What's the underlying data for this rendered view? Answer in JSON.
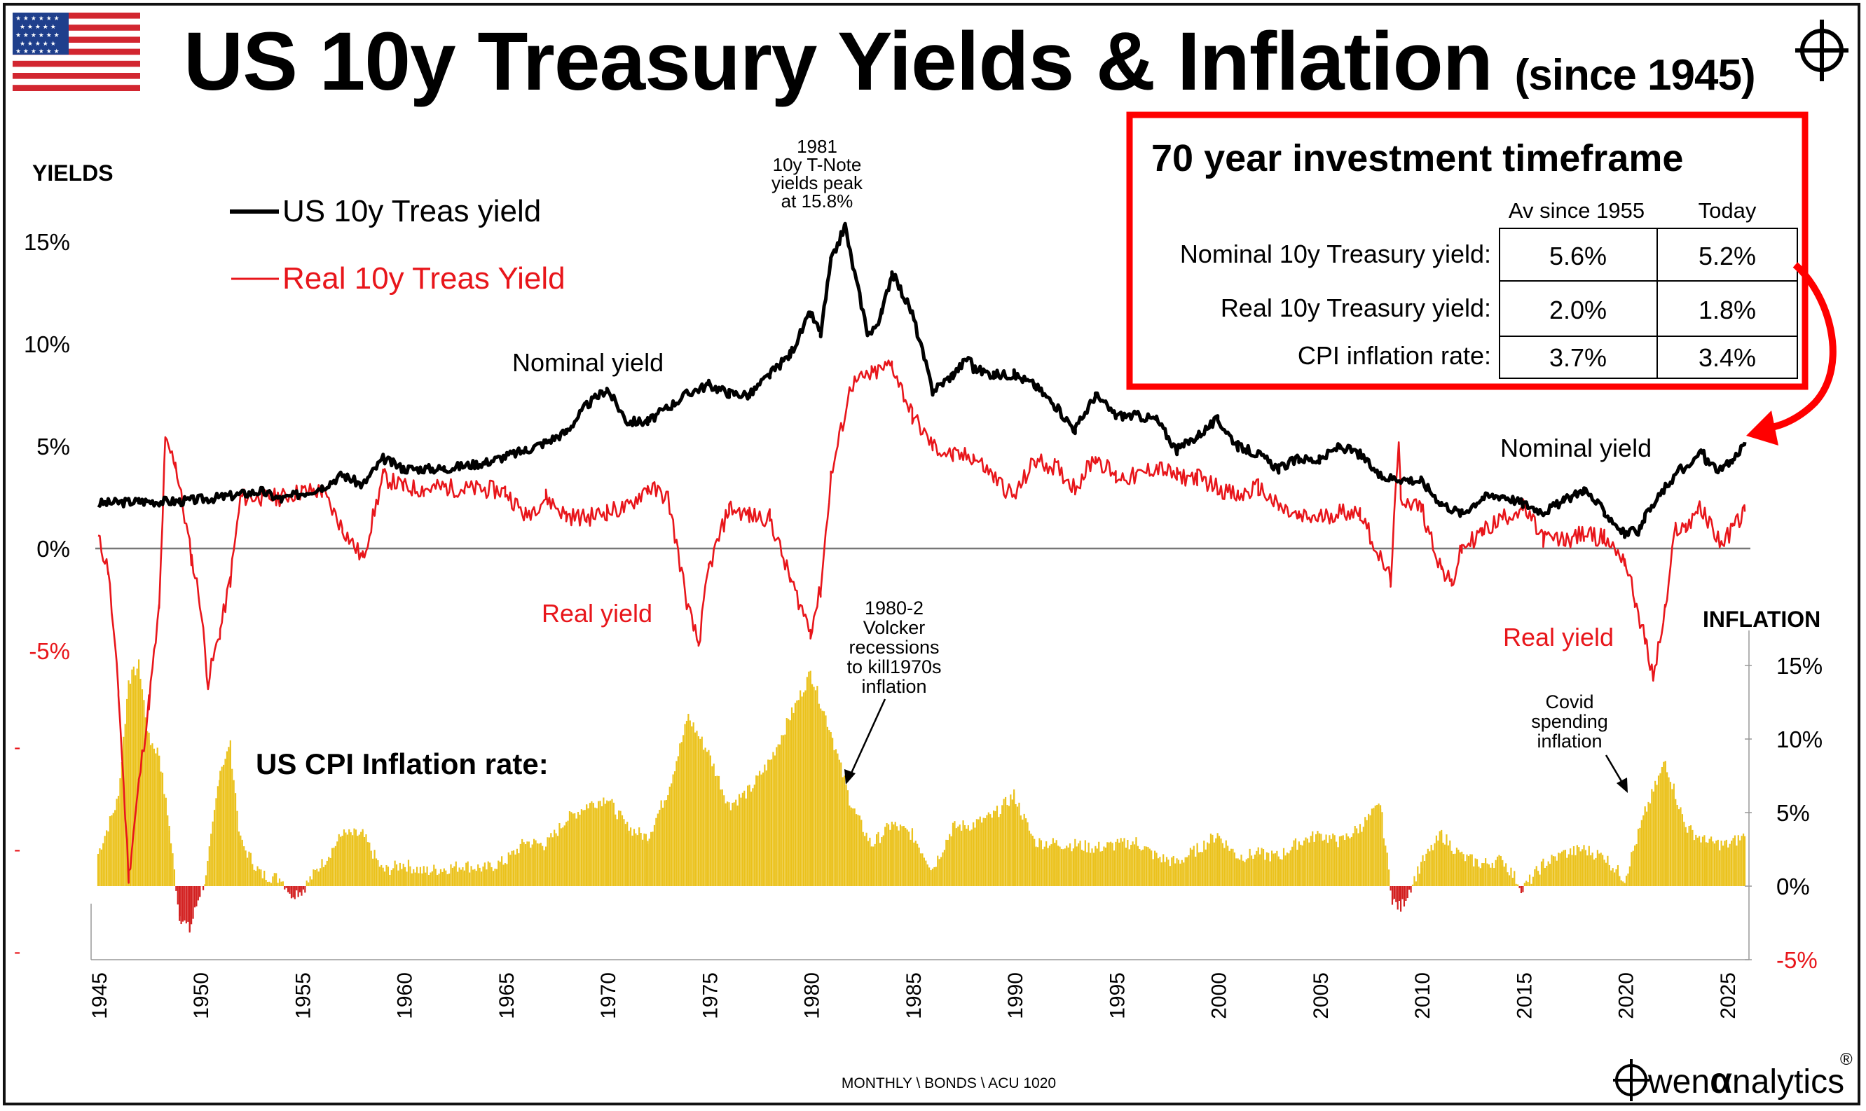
{
  "title": "US 10y Treasury Yields & Inflation",
  "title_suffix": "(since 1945)",
  "colors": {
    "nominal": "#000000",
    "real": "#e8161b",
    "cpi_pos": "#ebc21c",
    "cpi_neg": "#d32020",
    "box": "#ff0000"
  },
  "icons": {
    "flag": "us-flag-icon",
    "crosshair": "crosshair-logo-icon"
  },
  "left_axis_title": "YIELDS",
  "right_axis_title": "INFLATION",
  "legend": {
    "nominal": "US 10y Treas yield",
    "real": "Real 10y Treas Yield"
  },
  "labels": {
    "nominal_mid": "Nominal yield",
    "nominal_right": "Nominal yield",
    "real_mid": "Real yield",
    "real_right": "Real yield",
    "cpi_title": "US CPI Inflation rate:",
    "peak_note": [
      "1981",
      "10y T-Note",
      "yields peak",
      "at 15.8%"
    ],
    "volcker_note": [
      "1980-2",
      "Volcker",
      "recessions",
      "to kill1970s",
      "inflation"
    ],
    "covid_note": [
      "Covid",
      "spending",
      "inflation"
    ]
  },
  "info_box": {
    "title": "70 year investment timeframe",
    "col1": "Av since 1955",
    "col2": "Today",
    "rows": [
      {
        "label": "Nominal 10y Treasury yield:",
        "avg": "5.6%",
        "today": "5.2%"
      },
      {
        "label": "Real 10y Treasury yield:",
        "avg": "2.0%",
        "today": "1.8%"
      },
      {
        "label": "CPI inflation rate:",
        "avg": "3.7%",
        "today": "3.4%"
      }
    ]
  },
  "footer": {
    "source": "MONTHLY \\ BONDS \\ ACU 1020",
    "brand": "wen",
    "brand_alpha": "α",
    "brand_tail": "nalytics",
    "reg": "®"
  },
  "chart_data": {
    "type": "line",
    "x_range": [
      1945,
      2025.9
    ],
    "x_ticks": [
      "1945",
      "1950",
      "1955",
      "1960",
      "1965",
      "1970",
      "1975",
      "1980",
      "1985",
      "1990",
      "1995",
      "2000",
      "2005",
      "2010",
      "2015",
      "2020",
      "2025"
    ],
    "left_axis": {
      "range": [
        -5,
        15
      ],
      "ticks": [
        "15%",
        "10%",
        "5%",
        "0%",
        "-5%"
      ],
      "extra_ticks": [
        "-",
        "-",
        "-"
      ]
    },
    "right_axis": {
      "range": [
        -5,
        15
      ],
      "ticks": [
        "15%",
        "10%",
        "5%",
        "0%",
        "-5%"
      ]
    },
    "series": [
      {
        "name": "US 10y Treas yield",
        "axis": "left",
        "points": [
          [
            1945,
            2.2
          ],
          [
            1947,
            2.3
          ],
          [
            1949,
            2.3
          ],
          [
            1951,
            2.5
          ],
          [
            1953,
            2.8
          ],
          [
            1954,
            2.4
          ],
          [
            1956,
            3.0
          ],
          [
            1957,
            3.6
          ],
          [
            1958,
            3.1
          ],
          [
            1959,
            4.4
          ],
          [
            1960,
            3.9
          ],
          [
            1962,
            3.9
          ],
          [
            1964,
            4.2
          ],
          [
            1966,
            4.8
          ],
          [
            1967,
            5.2
          ],
          [
            1968,
            5.7
          ],
          [
            1969,
            7.0
          ],
          [
            1970,
            7.8
          ],
          [
            1971,
            6.2
          ],
          [
            1972,
            6.2
          ],
          [
            1973,
            6.9
          ],
          [
            1974,
            7.6
          ],
          [
            1975,
            8.0
          ],
          [
            1976,
            7.6
          ],
          [
            1977,
            7.5
          ],
          [
            1978,
            8.5
          ],
          [
            1979,
            9.5
          ],
          [
            1980,
            11.5
          ],
          [
            1980.5,
            10.5
          ],
          [
            1981,
            14.0
          ],
          [
            1981.7,
            15.8
          ],
          [
            1982,
            14.2
          ],
          [
            1982.8,
            10.6
          ],
          [
            1983,
            10.5
          ],
          [
            1983.5,
            11.5
          ],
          [
            1984,
            13.5
          ],
          [
            1985,
            11.5
          ],
          [
            1986,
            7.7
          ],
          [
            1987,
            8.5
          ],
          [
            1987.8,
            9.4
          ],
          [
            1988,
            8.8
          ],
          [
            1989,
            8.5
          ],
          [
            1990,
            8.5
          ],
          [
            1991,
            8.0
          ],
          [
            1992,
            7.0
          ],
          [
            1993,
            5.8
          ],
          [
            1994,
            7.5
          ],
          [
            1995,
            6.5
          ],
          [
            1996,
            6.5
          ],
          [
            1997,
            6.3
          ],
          [
            1998,
            4.8
          ],
          [
            1999,
            5.5
          ],
          [
            2000,
            6.3
          ],
          [
            2001,
            5.0
          ],
          [
            2002,
            4.6
          ],
          [
            2003,
            3.9
          ],
          [
            2004,
            4.4
          ],
          [
            2005,
            4.3
          ],
          [
            2006,
            5.0
          ],
          [
            2007,
            4.6
          ],
          [
            2008,
            3.5
          ],
          [
            2009,
            3.4
          ],
          [
            2010,
            3.3
          ],
          [
            2011,
            2.2
          ],
          [
            2012,
            1.7
          ],
          [
            2013,
            2.5
          ],
          [
            2014,
            2.6
          ],
          [
            2015,
            2.2
          ],
          [
            2016,
            1.8
          ],
          [
            2017,
            2.3
          ],
          [
            2018,
            2.9
          ],
          [
            2019,
            1.8
          ],
          [
            2020,
            0.7
          ],
          [
            2020.8,
            0.9
          ],
          [
            2021,
            1.5
          ],
          [
            2022,
            3.0
          ],
          [
            2022.8,
            4.0
          ],
          [
            2023,
            3.8
          ],
          [
            2023.8,
            4.8
          ],
          [
            2024,
            4.3
          ],
          [
            2024.7,
            3.8
          ],
          [
            2025.3,
            4.3
          ],
          [
            2025.9,
            5.2
          ]
        ]
      },
      {
        "name": "Real 10y Treas Yield",
        "axis": "left",
        "points": [
          [
            1945,
            0.5
          ],
          [
            1945.5,
            -1
          ],
          [
            1946,
            -7.0
          ],
          [
            1946.5,
            -16.0
          ],
          [
            1947,
            -11.5
          ],
          [
            1947.5,
            -7.5
          ],
          [
            1948,
            -3.0
          ],
          [
            1948.3,
            5.2
          ],
          [
            1948.8,
            4.2
          ],
          [
            1949,
            3.0
          ],
          [
            1949.6,
            -0.5
          ],
          [
            1950,
            -2.5
          ],
          [
            1950.4,
            -6.5
          ],
          [
            1951,
            -4.0
          ],
          [
            1951.5,
            -1.5
          ],
          [
            1952,
            2.5
          ],
          [
            1953,
            2.5
          ],
          [
            1954,
            2.5
          ],
          [
            1955,
            2.8
          ],
          [
            1956,
            2.8
          ],
          [
            1957,
            1.0
          ],
          [
            1958,
            -0.5
          ],
          [
            1959,
            3.5
          ],
          [
            1960,
            3.0
          ],
          [
            1961,
            2.9
          ],
          [
            1962,
            3.0
          ],
          [
            1963,
            2.9
          ],
          [
            1964,
            2.9
          ],
          [
            1965,
            2.8
          ],
          [
            1966,
            1.6
          ],
          [
            1967,
            2.5
          ],
          [
            1968,
            1.6
          ],
          [
            1969,
            1.5
          ],
          [
            1970,
            1.8
          ],
          [
            1971,
            2.0
          ],
          [
            1972,
            3.0
          ],
          [
            1973,
            2.5
          ],
          [
            1974,
            -3.0
          ],
          [
            1974.5,
            -4.7
          ],
          [
            1975,
            -1.0
          ],
          [
            1976,
            2.0
          ],
          [
            1977,
            1.6
          ],
          [
            1978,
            1.5
          ],
          [
            1979,
            -1.5
          ],
          [
            1980,
            -4.0
          ],
          [
            1980.5,
            -2.0
          ],
          [
            1981,
            3.5
          ],
          [
            1982,
            8.0
          ],
          [
            1983,
            8.5
          ],
          [
            1984,
            9.0
          ],
          [
            1985,
            6.5
          ],
          [
            1986,
            5.0
          ],
          [
            1987,
            4.5
          ],
          [
            1988,
            4.5
          ],
          [
            1989,
            3.5
          ],
          [
            1990,
            2.5
          ],
          [
            1991,
            4.3
          ],
          [
            1992,
            4.0
          ],
          [
            1993,
            3.0
          ],
          [
            1994,
            4.5
          ],
          [
            1995,
            3.5
          ],
          [
            1996,
            3.5
          ],
          [
            1997,
            4.0
          ],
          [
            1998,
            3.5
          ],
          [
            1999,
            3.5
          ],
          [
            2000,
            3.0
          ],
          [
            2001,
            2.5
          ],
          [
            2002,
            3.0
          ],
          [
            2003,
            2.0
          ],
          [
            2004,
            1.5
          ],
          [
            2005,
            1.5
          ],
          [
            2006,
            1.8
          ],
          [
            2007,
            1.8
          ],
          [
            2008,
            -0.5
          ],
          [
            2008.5,
            -1.5
          ],
          [
            2008.9,
            5.0
          ],
          [
            2009,
            2.5
          ],
          [
            2010,
            2.0
          ],
          [
            2011,
            -1.0
          ],
          [
            2011.5,
            -1.8
          ],
          [
            2012,
            0.0
          ],
          [
            2013,
            0.8
          ],
          [
            2014,
            1.5
          ],
          [
            2015,
            2.0
          ],
          [
            2016,
            0.5
          ],
          [
            2017,
            0.4
          ],
          [
            2018,
            0.7
          ],
          [
            2019,
            0.5
          ],
          [
            2020,
            -0.5
          ],
          [
            2020.5,
            -2.5
          ],
          [
            2021,
            -4.5
          ],
          [
            2021.4,
            -6.3
          ],
          [
            2022,
            -3.0
          ],
          [
            2022.5,
            1.0
          ],
          [
            2023,
            1.0
          ],
          [
            2023.6,
            2.0
          ],
          [
            2024,
            1.5
          ],
          [
            2024.8,
            0.2
          ],
          [
            2025.3,
            1.0
          ],
          [
            2025.9,
            1.8
          ]
        ]
      },
      {
        "name": "US CPI Inflation rate",
        "axis": "right",
        "type": "bar",
        "points": [
          [
            1945,
            2.2
          ],
          [
            1946,
            6.0
          ],
          [
            1946.5,
            14.0
          ],
          [
            1947,
            15.0
          ],
          [
            1947.5,
            10.0
          ],
          [
            1948,
            9.0
          ],
          [
            1948.5,
            4.0
          ],
          [
            1949,
            -2.0
          ],
          [
            1949.5,
            -3.0
          ],
          [
            1950,
            -0.5
          ],
          [
            1950.3,
            0.5
          ],
          [
            1951,
            8.0
          ],
          [
            1951.5,
            9.5
          ],
          [
            1952,
            3.0
          ],
          [
            1953,
            0.8
          ],
          [
            1954,
            0.5
          ],
          [
            1954.5,
            -0.5
          ],
          [
            1955,
            -0.3
          ],
          [
            1956,
            1.5
          ],
          [
            1957,
            3.5
          ],
          [
            1958,
            3.5
          ],
          [
            1959,
            1.0
          ],
          [
            1960,
            1.5
          ],
          [
            1961,
            1.0
          ],
          [
            1962,
            1.2
          ],
          [
            1963,
            1.4
          ],
          [
            1964,
            1.2
          ],
          [
            1965,
            1.7
          ],
          [
            1966,
            3.0
          ],
          [
            1967,
            2.8
          ],
          [
            1968,
            4.5
          ],
          [
            1969,
            5.5
          ],
          [
            1970,
            6.0
          ],
          [
            1971,
            4.0
          ],
          [
            1972,
            3.3
          ],
          [
            1973,
            6.5
          ],
          [
            1974,
            11.5
          ],
          [
            1975,
            9.0
          ],
          [
            1976,
            5.5
          ],
          [
            1977,
            6.5
          ],
          [
            1978,
            8.5
          ],
          [
            1979,
            11.5
          ],
          [
            1980,
            14.5
          ],
          [
            1981,
            10.5
          ],
          [
            1982,
            5.5
          ],
          [
            1983,
            2.8
          ],
          [
            1984,
            4.2
          ],
          [
            1985,
            3.5
          ],
          [
            1986,
            1.2
          ],
          [
            1987,
            4.0
          ],
          [
            1988,
            4.2
          ],
          [
            1989,
            4.8
          ],
          [
            1990,
            6.2
          ],
          [
            1991,
            3.0
          ],
          [
            1992,
            2.9
          ],
          [
            1993,
            2.8
          ],
          [
            1994,
            2.6
          ],
          [
            1995,
            2.8
          ],
          [
            1996,
            3.0
          ],
          [
            1997,
            2.0
          ],
          [
            1998,
            1.6
          ],
          [
            1999,
            2.5
          ],
          [
            2000,
            3.5
          ],
          [
            2001,
            2.0
          ],
          [
            2002,
            2.2
          ],
          [
            2003,
            2.0
          ],
          [
            2004,
            3.0
          ],
          [
            2005,
            3.5
          ],
          [
            2006,
            3.0
          ],
          [
            2007,
            4.0
          ],
          [
            2008,
            5.5
          ],
          [
            2008.6,
            -1.0
          ],
          [
            2009,
            -1.5
          ],
          [
            2010,
            1.5
          ],
          [
            2011,
            3.5
          ],
          [
            2012,
            2.0
          ],
          [
            2013,
            1.5
          ],
          [
            2014,
            1.8
          ],
          [
            2015,
            -0.2
          ],
          [
            2016,
            1.5
          ],
          [
            2017,
            2.2
          ],
          [
            2018,
            2.5
          ],
          [
            2019,
            2.0
          ],
          [
            2020,
            0.5
          ],
          [
            2021,
            5.0
          ],
          [
            2022,
            8.5
          ],
          [
            2023,
            4.0
          ],
          [
            2024,
            3.0
          ],
          [
            2025,
            2.8
          ],
          [
            2025.9,
            3.4
          ]
        ]
      }
    ]
  }
}
